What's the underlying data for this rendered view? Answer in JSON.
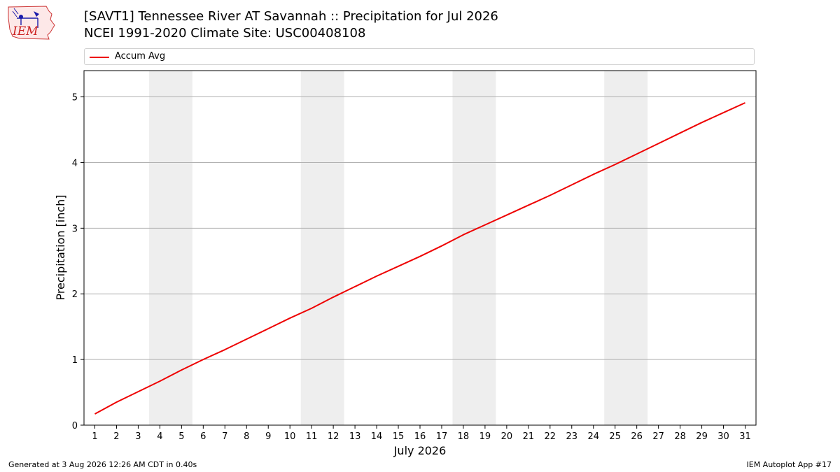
{
  "header": {
    "title_line1": "[SAVT1] Tennessee River  AT Savannah :: Precipitation for Jul 2026",
    "title_line2": "NCEI 1991-2020 Climate Site: USC00408108",
    "logo_text": "IEM",
    "logo_icon": "iowa-weather-logo-icon"
  },
  "footer": {
    "generated": "Generated at 3 Aug 2026 12:26 AM CDT in 0.40s",
    "app": "IEM Autoplot App #17"
  },
  "chart_data": {
    "type": "line",
    "xlabel": "July 2026",
    "ylabel": "Precipitation [inch]",
    "x": [
      1,
      2,
      3,
      4,
      5,
      6,
      7,
      8,
      9,
      10,
      11,
      12,
      13,
      14,
      15,
      16,
      17,
      18,
      19,
      20,
      21,
      22,
      23,
      24,
      25,
      26,
      27,
      28,
      29,
      30,
      31
    ],
    "x_ticks": [
      "1",
      "2",
      "3",
      "4",
      "5",
      "6",
      "7",
      "8",
      "9",
      "10",
      "11",
      "12",
      "13",
      "14",
      "15",
      "16",
      "17",
      "18",
      "19",
      "20",
      "21",
      "22",
      "23",
      "24",
      "25",
      "26",
      "27",
      "28",
      "29",
      "30",
      "31"
    ],
    "xlim": [
      0.5,
      31.5
    ],
    "ylim": [
      0,
      5.4
    ],
    "y_ticks": [
      0,
      1,
      2,
      3,
      4,
      5
    ],
    "grid": "horizontal",
    "legend_position": "top",
    "weekend_shading": [
      [
        3.5,
        5.5
      ],
      [
        10.5,
        12.5
      ],
      [
        17.5,
        19.5
      ],
      [
        24.5,
        26.5
      ]
    ],
    "shading_color": "#eeeeee",
    "series": [
      {
        "name": "Accum Avg",
        "color": "#ee0000",
        "values": [
          0.17,
          0.35,
          0.51,
          0.67,
          0.84,
          1.0,
          1.15,
          1.31,
          1.47,
          1.63,
          1.78,
          1.95,
          2.11,
          2.27,
          2.42,
          2.57,
          2.73,
          2.9,
          3.05,
          3.2,
          3.35,
          3.5,
          3.66,
          3.82,
          3.97,
          4.13,
          4.29,
          4.45,
          4.61,
          4.76,
          4.91
        ]
      }
    ]
  }
}
